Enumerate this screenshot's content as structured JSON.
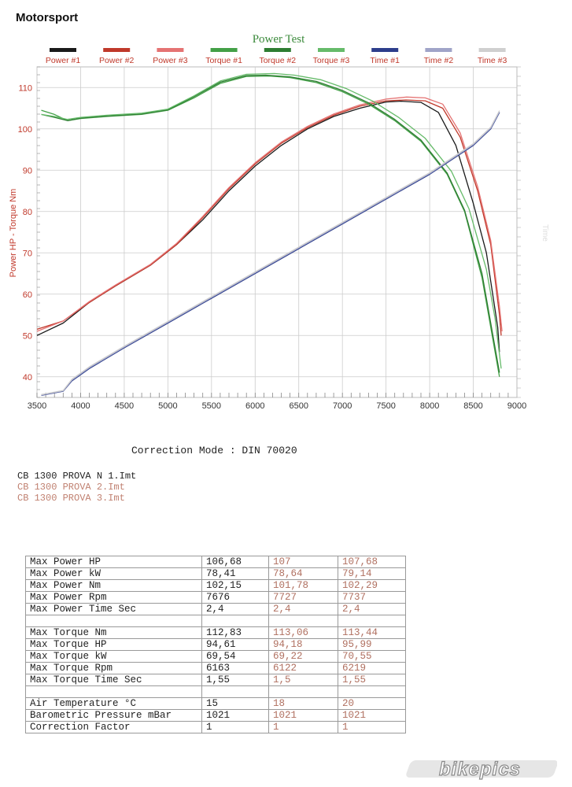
{
  "brand": "Motorsport",
  "chart_data": {
    "type": "line",
    "title": "Power Test",
    "ylabel": "Power HP - Torque Nm",
    "ylabel_right": "Time",
    "xlim": [
      3500,
      9000
    ],
    "ylim": [
      35,
      115
    ],
    "xticks": [
      3500,
      4000,
      4500,
      5000,
      5500,
      6000,
      6500,
      7000,
      7500,
      8000,
      8500,
      9000
    ],
    "yticks": [
      40,
      50,
      60,
      70,
      80,
      90,
      100,
      110
    ],
    "y2ticks": [],
    "grid": true,
    "legend": "top",
    "series": [
      {
        "name": "Power #1",
        "color": "#1a1a1a",
        "axis": "left",
        "x": [
          3500,
          3800,
          4100,
          4400,
          4800,
          5100,
          5400,
          5700,
          6000,
          6300,
          6600,
          6900,
          7200,
          7500,
          7676,
          7900,
          8100,
          8300,
          8500,
          8650,
          8780,
          8800
        ],
        "y": [
          50,
          53,
          58,
          62,
          67,
          72,
          78,
          85,
          91,
          96,
          100,
          103,
          105,
          106.5,
          106.7,
          106.4,
          104,
          96,
          82,
          70,
          52,
          46
        ]
      },
      {
        "name": "Power #2",
        "color": "#c0392b",
        "axis": "left",
        "x": [
          3500,
          3800,
          4100,
          4400,
          4800,
          5100,
          5400,
          5700,
          6000,
          6300,
          6600,
          6900,
          7200,
          7500,
          7727,
          7950,
          8150,
          8350,
          8550,
          8700,
          8800,
          8820
        ],
        "y": [
          51.5,
          53.5,
          58,
          62,
          67,
          72,
          78.5,
          85.5,
          91.5,
          96.5,
          100.3,
          103.3,
          105.5,
          106.8,
          107,
          106.8,
          105,
          98,
          85,
          72,
          55,
          50
        ]
      },
      {
        "name": "Power #3",
        "color": "#e57373",
        "axis": "left",
        "x": [
          3500,
          3800,
          4100,
          4400,
          4800,
          5100,
          5400,
          5700,
          6000,
          6300,
          6600,
          6900,
          7200,
          7500,
          7737,
          7950,
          8150,
          8350,
          8550,
          8700,
          8800,
          8830
        ],
        "y": [
          51,
          53.5,
          58.2,
          62.2,
          67.2,
          72.3,
          78.8,
          85.8,
          91.8,
          96.8,
          100.6,
          103.6,
          105.8,
          107.2,
          107.7,
          107.5,
          106,
          99,
          86,
          73,
          57,
          51
        ]
      },
      {
        "name": "Torque #1",
        "color": "#43a047",
        "axis": "left",
        "x": [
          3550,
          3700,
          3850,
          4000,
          4300,
          4700,
          5000,
          5300,
          5600,
          5900,
          6163,
          6400,
          6700,
          7000,
          7300,
          7600,
          7900,
          8200,
          8400,
          8600,
          8700,
          8800
        ],
        "y": [
          104.5,
          103.5,
          102,
          102.5,
          103,
          103.5,
          104.5,
          107.5,
          111,
          112.7,
          112.8,
          112.4,
          111.2,
          109,
          106,
          102,
          97,
          89,
          80,
          64,
          52,
          40
        ]
      },
      {
        "name": "Torque #2",
        "color": "#2e7d32",
        "axis": "left",
        "x": [
          3550,
          3700,
          3850,
          4000,
          4300,
          4700,
          5000,
          5300,
          5600,
          5900,
          6122,
          6400,
          6700,
          7000,
          7300,
          7600,
          7900,
          8200,
          8400,
          8600,
          8700,
          8800
        ],
        "y": [
          103.5,
          102.8,
          102,
          102.6,
          103.1,
          103.6,
          104.6,
          107.8,
          111.3,
          112.9,
          113,
          112.6,
          111.5,
          109.3,
          106.3,
          102.3,
          97.3,
          89.3,
          80.3,
          65,
          53,
          41
        ]
      },
      {
        "name": "Torque #3",
        "color": "#66bb6a",
        "axis": "left",
        "x": [
          3550,
          3700,
          3850,
          4000,
          4300,
          4700,
          5000,
          5300,
          5600,
          5900,
          6219,
          6450,
          6750,
          7050,
          7350,
          7650,
          7950,
          8250,
          8450,
          8650,
          8750,
          8820
        ],
        "y": [
          103.5,
          103,
          102.3,
          102.8,
          103.3,
          103.8,
          104.8,
          108,
          111.6,
          113.2,
          113.4,
          113,
          111.9,
          109.7,
          106.7,
          102.7,
          97.7,
          89.7,
          80.7,
          66,
          54,
          42
        ]
      },
      {
        "name": "Time #1",
        "color": "#2d3e8c",
        "axis": "left",
        "x": [
          3550,
          3800,
          3900,
          4100,
          4500,
          5000,
          5500,
          6000,
          6500,
          7000,
          7500,
          8000,
          8500,
          8700,
          8800
        ],
        "y": [
          35.5,
          36.5,
          39,
          42,
          47,
          53,
          59,
          65,
          71,
          77,
          83,
          89,
          96,
          100,
          104
        ]
      },
      {
        "name": "Time #2",
        "color": "#a0a4c8",
        "axis": "left",
        "x": [
          3550,
          3800,
          3900,
          4100,
          4500,
          5000,
          5500,
          6000,
          6500,
          7000,
          7500,
          8000,
          8500,
          8700,
          8800
        ],
        "y": [
          35.6,
          36.6,
          39.2,
          42.2,
          47.2,
          53.2,
          59.2,
          65.2,
          71.2,
          77.2,
          83.2,
          89.2,
          96.2,
          100.2,
          104.2
        ]
      },
      {
        "name": "Time #3",
        "color": "#cfcfcf",
        "axis": "left",
        "x": [
          3550,
          3800,
          3900,
          4100,
          4500,
          5000,
          5500,
          6000,
          6500,
          7000,
          7500,
          8000,
          8500,
          8700,
          8800
        ],
        "y": [
          35.7,
          36.7,
          39.4,
          42.4,
          47.4,
          53.4,
          59.4,
          65.4,
          71.4,
          77.4,
          83.4,
          89.4,
          96.4,
          100.4,
          104.4
        ]
      }
    ]
  },
  "correction_mode": "Correction Mode : DIN 70020",
  "files": [
    {
      "name": "CB 1300 PROVA N 1.Imt",
      "color": "#222222"
    },
    {
      "name": "CB 1300 PROVA 2.Imt",
      "color": "#c08070"
    },
    {
      "name": "CB 1300 PROVA 3.Imt",
      "color": "#c08070"
    }
  ],
  "table": {
    "rows": [
      {
        "label": "Max Power HP",
        "v1": "106,68",
        "v2": "107",
        "v3": "107,68"
      },
      {
        "label": "Max Power kW",
        "v1": "78,41",
        "v2": "78,64",
        "v3": "79,14"
      },
      {
        "label": "Max Power Nm",
        "v1": "102,15",
        "v2": "101,78",
        "v3": "102,29"
      },
      {
        "label": "Max Power Rpm",
        "v1": "7676",
        "v2": "7727",
        "v3": "7737"
      },
      {
        "label": "Max Power Time Sec",
        "v1": "2,4",
        "v2": "2,4",
        "v3": "2,4"
      },
      {
        "label": "",
        "v1": "",
        "v2": "",
        "v3": ""
      },
      {
        "label": "Max Torque Nm",
        "v1": "112,83",
        "v2": "113,06",
        "v3": "113,44"
      },
      {
        "label": "Max Torque HP",
        "v1": "94,61",
        "v2": "94,18",
        "v3": "95,99"
      },
      {
        "label": "Max Torque kW",
        "v1": "69,54",
        "v2": "69,22",
        "v3": "70,55"
      },
      {
        "label": "Max Torque Rpm",
        "v1": "6163",
        "v2": "6122",
        "v3": "6219"
      },
      {
        "label": "Max Torque Time Sec",
        "v1": "1,55",
        "v2": "1,5",
        "v3": "1,55"
      },
      {
        "label": "",
        "v1": "",
        "v2": "",
        "v3": ""
      },
      {
        "label": "Air Temperature °C",
        "v1": "15",
        "v2": "18",
        "v3": "20"
      },
      {
        "label": "Barometric Pressure mBar",
        "v1": "1021",
        "v2": "1021",
        "v3": "1021"
      },
      {
        "label": "Correction Factor",
        "v1": "1",
        "v2": "1",
        "v3": "1"
      }
    ]
  },
  "logo": "bikepics"
}
